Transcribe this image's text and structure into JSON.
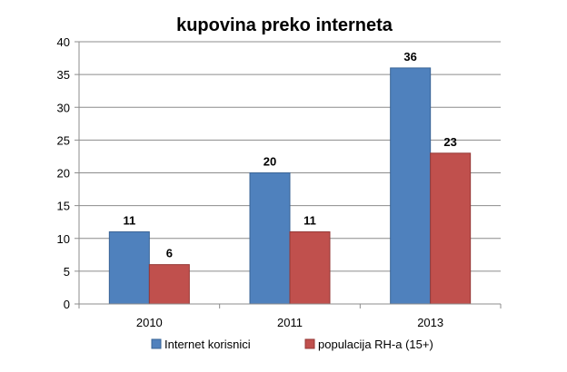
{
  "chart_data": {
    "type": "bar",
    "title": "kupovina preko interneta",
    "xlabel": "",
    "ylabel": "",
    "categories": [
      "2010",
      "2011",
      "2013"
    ],
    "series": [
      {
        "name": "Internet korisnici",
        "values": [
          11,
          20,
          36
        ],
        "color": "#4F81BD",
        "edge": "#3A6496"
      },
      {
        "name": "populacija RH-a (15+)",
        "values": [
          6,
          11,
          23
        ],
        "color": "#C0504D",
        "edge": "#953735"
      }
    ],
    "ylim": [
      0,
      40
    ],
    "yticks": [
      "0",
      "5",
      "10",
      "15",
      "20",
      "25",
      "30",
      "35",
      "40"
    ],
    "grid": true,
    "legend": "bottom",
    "data_labels": true
  }
}
